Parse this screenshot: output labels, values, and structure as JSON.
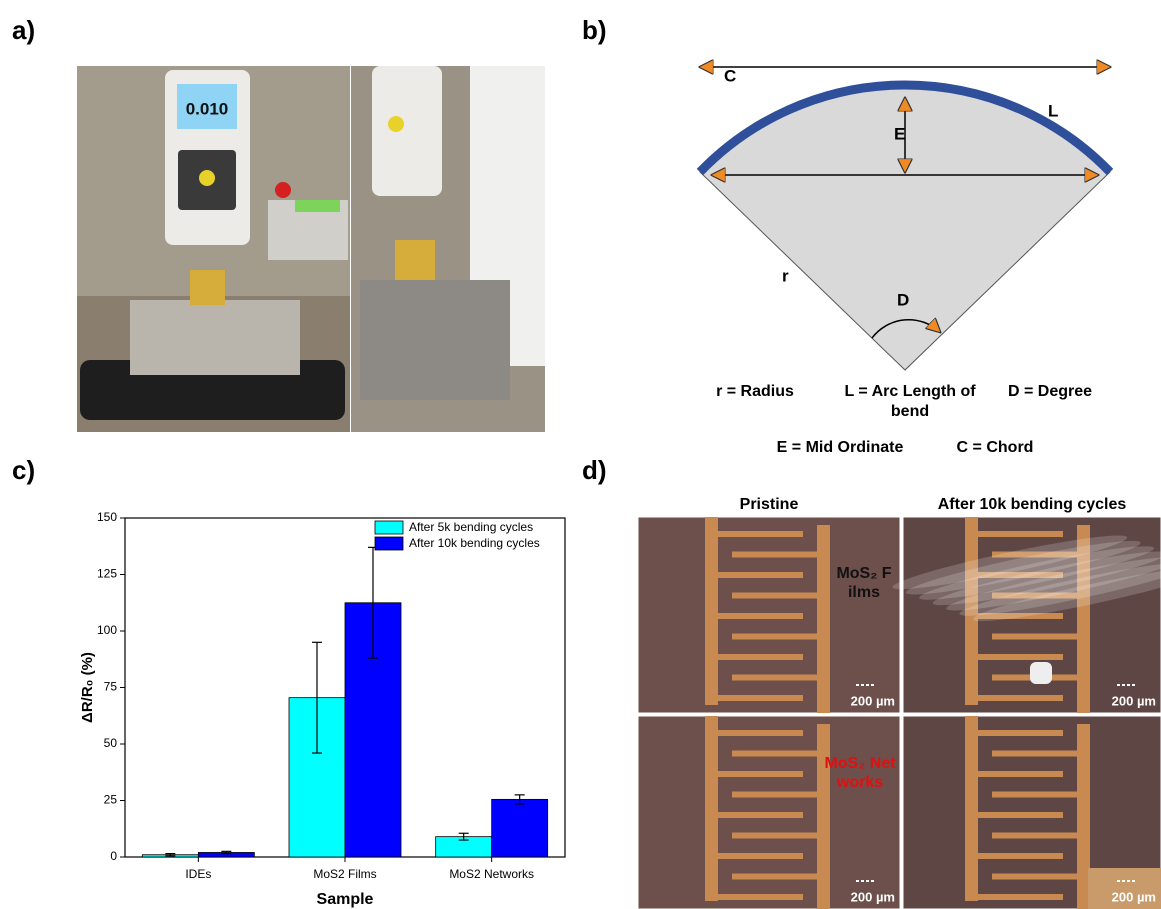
{
  "panel_labels": [
    "a)",
    "b)",
    "c)",
    "d)"
  ],
  "photo": {
    "display_reading": "0.010"
  },
  "diagram": {
    "labels": {
      "chord": "C",
      "arc": "L",
      "mid_ordinate": "E",
      "radius": "r",
      "degree": "D"
    },
    "legend": [
      "r = Radius",
      "L = Arc Length of bend",
      "D = Degree",
      "E = Mid Ordinate",
      "C = Chord"
    ]
  },
  "chart_data": {
    "type": "bar",
    "x_label": "Sample",
    "y_label": "ΔR/R₀ (%)",
    "categories": [
      "IDEs",
      "MoS2 Films",
      "MoS2 Networks"
    ],
    "series": [
      {
        "name": "After 5k bending cycles",
        "color": "#00ffff",
        "values": [
          1,
          70.5,
          9
        ],
        "errors": [
          0.5,
          24.5,
          1.5
        ]
      },
      {
        "name": "After 10k bending cycles",
        "color": "#0000ff",
        "values": [
          2,
          112.5,
          25.5
        ],
        "errors": [
          0.5,
          24.5,
          2
        ]
      }
    ],
    "ylim": [
      0,
      150
    ],
    "yticks": [
      0,
      25,
      50,
      75,
      100,
      125,
      150
    ],
    "legend": "upper right"
  },
  "micrographs": {
    "columns": [
      "Pristine",
      "After 10k bending cycles"
    ],
    "rows": [
      "MoS₂ Films",
      "MoS₂ Networks"
    ],
    "scale_bar": "200 µm"
  }
}
